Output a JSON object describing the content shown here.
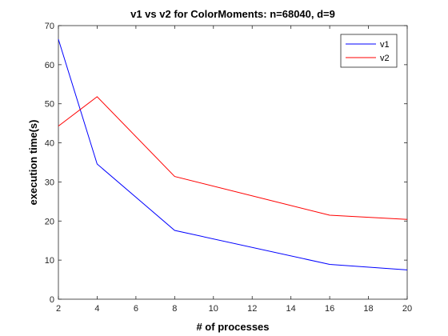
{
  "chart_data": {
    "type": "line",
    "title": "v1 vs v2 for ColorMoments: n=68040, d=9",
    "xlabel": "# of processes",
    "ylabel": "execution time(s)",
    "xlim": [
      2,
      20
    ],
    "ylim": [
      0,
      70
    ],
    "xticks": [
      2,
      4,
      6,
      8,
      10,
      12,
      14,
      16,
      18,
      20
    ],
    "yticks": [
      0,
      10,
      20,
      30,
      40,
      50,
      60,
      70
    ],
    "grid": false,
    "legend_position": "top-right",
    "x": [
      2,
      4,
      8,
      16,
      20
    ],
    "series": [
      {
        "name": "v1",
        "color": "#0000ff",
        "values": [
          66.5,
          34.6,
          17.6,
          8.9,
          7.5
        ]
      },
      {
        "name": "v2",
        "color": "#ff0000",
        "values": [
          44.3,
          51.8,
          31.4,
          21.5,
          20.4
        ]
      }
    ]
  }
}
